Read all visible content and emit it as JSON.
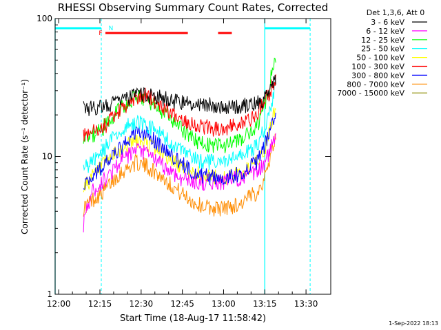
{
  "chart_data": {
    "type": "line",
    "title": "RHESSI Observing Summary Count Rates, Corrected",
    "xlabel": "Start Time (18-Aug-17 11:58:42)",
    "ylabel": "Corrected Count Rate (s⁻¹ detector⁻¹)",
    "yscale": "log",
    "ylim": [
      1,
      100
    ],
    "xlim": [
      "11:58:42",
      "13:39:00"
    ],
    "x_ticks": [
      "12:00",
      "12:15",
      "12:30",
      "12:45",
      "13:00",
      "13:15",
      "13:30"
    ],
    "y_ticks": [
      "1",
      "10",
      "100"
    ],
    "grid": false,
    "legend_position": "right",
    "legend_header": "Det 1,3,6, Att 0",
    "series": [
      {
        "name": "3 - 6 keV",
        "color": "#000000",
        "x": [
          "12:09",
          "12:16",
          "12:24",
          "12:30",
          "12:36",
          "12:42",
          "12:48",
          "12:54",
          "13:00",
          "13:06",
          "13:12",
          "13:15",
          "13:17",
          "13:19"
        ],
        "values": [
          22,
          23,
          26,
          28,
          27,
          25,
          24,
          24,
          23,
          23,
          24,
          26,
          30,
          38
        ]
      },
      {
        "name": "6 - 12 keV",
        "color": "#ff00ff",
        "x": [
          "12:09",
          "12:12",
          "12:16",
          "12:22",
          "12:28",
          "12:32",
          "12:38",
          "12:44",
          "12:50",
          "12:56",
          "13:00",
          "13:06",
          "13:12",
          "13:15",
          "13:17",
          "13:19"
        ],
        "values": [
          3.2,
          5.5,
          6.5,
          9,
          11,
          10.5,
          8.5,
          7,
          6.5,
          6.5,
          6.5,
          7,
          7.5,
          9,
          11,
          15
        ]
      },
      {
        "name": "12 - 25 keV",
        "color": "#00ff00",
        "x": [
          "12:09",
          "12:12",
          "12:16",
          "12:22",
          "12:28",
          "12:32",
          "12:38",
          "12:44",
          "12:50",
          "12:56",
          "13:00",
          "13:06",
          "13:12",
          "13:15",
          "13:17",
          "13:19"
        ],
        "values": [
          13,
          14,
          16,
          22,
          27,
          26,
          21,
          16,
          13,
          12,
          12,
          13,
          16,
          24,
          35,
          55
        ]
      },
      {
        "name": "25 - 50 keV",
        "color": "#00ffff",
        "x": [
          "12:09",
          "12:12",
          "12:16",
          "12:22",
          "12:28",
          "12:32",
          "12:38",
          "12:44",
          "12:50",
          "12:56",
          "13:00",
          "13:06",
          "13:12",
          "13:15",
          "13:17",
          "13:19"
        ],
        "values": [
          8,
          9,
          11,
          15,
          18,
          17,
          14,
          11,
          9.5,
          9,
          9,
          10,
          12,
          16,
          22,
          34
        ]
      },
      {
        "name": "50 - 100 keV",
        "color": "#ffff00",
        "x": [
          "12:09",
          "12:12",
          "12:16",
          "12:22",
          "12:28",
          "12:32",
          "12:38",
          "12:44",
          "12:50",
          "12:56",
          "13:00",
          "13:06",
          "13:12",
          "13:15",
          "13:17",
          "13:19"
        ],
        "values": [
          6,
          7,
          8.5,
          11,
          13,
          12.5,
          10.5,
          8.5,
          7.5,
          7,
          7,
          7.5,
          9,
          11,
          16,
          24
        ]
      },
      {
        "name": "100 - 300 keV",
        "color": "#ff0000",
        "x": [
          "12:09",
          "12:12",
          "12:16",
          "12:22",
          "12:28",
          "12:32",
          "12:38",
          "12:44",
          "12:50",
          "12:56",
          "13:00",
          "13:06",
          "13:12",
          "13:15",
          "13:17",
          "13:19"
        ],
        "values": [
          14,
          15,
          16,
          21,
          26,
          28,
          23,
          19,
          17,
          16,
          16,
          17,
          20,
          25,
          30,
          38
        ]
      },
      {
        "name": "300 - 800 keV",
        "color": "#0000ff",
        "x": [
          "12:09",
          "12:12",
          "12:16",
          "12:22",
          "12:28",
          "12:32",
          "12:38",
          "12:44",
          "12:50",
          "12:56",
          "13:00",
          "13:06",
          "13:12",
          "13:15",
          "13:17",
          "13:19"
        ],
        "values": [
          6.5,
          7,
          8.5,
          11,
          15,
          14.5,
          11.5,
          9,
          7.5,
          7,
          7,
          7.5,
          9,
          12,
          16,
          20
        ]
      },
      {
        "name": "800 - 7000 keV",
        "color": "#ff8c00",
        "x": [
          "12:09",
          "12:12",
          "12:16",
          "12:22",
          "12:28",
          "12:32",
          "12:38",
          "12:44",
          "12:50",
          "12:56",
          "13:00",
          "13:06",
          "13:12",
          "13:15",
          "13:17",
          "13:19"
        ],
        "values": [
          4.2,
          4.8,
          5.5,
          7.5,
          9,
          8.5,
          7,
          5.5,
          4.5,
          4.2,
          4.2,
          4.5,
          5.5,
          7,
          10,
          14
        ]
      },
      {
        "name": "7000 - 15000 keV",
        "color": "#8b8b00",
        "x": [],
        "values": []
      }
    ],
    "annotations": {
      "night_bars": {
        "color": "#00ffff",
        "label": "N",
        "segments": [
          [
            "11:58:42",
            "12:15:30"
          ],
          [
            "13:15:00",
            "13:31:30"
          ]
        ],
        "dashed_boundaries": [
          "12:15:30",
          "13:31:30"
        ],
        "solid_boundaries": [
          "11:58:42",
          "13:15:00"
        ]
      },
      "flare_bars": {
        "color": "#ff0000",
        "label": "F",
        "segments": [
          [
            "12:17:00",
            "12:47:00"
          ],
          [
            "12:58:00",
            "13:03:00"
          ]
        ]
      }
    },
    "footer_date": "1-Sep-2022 18:13"
  }
}
